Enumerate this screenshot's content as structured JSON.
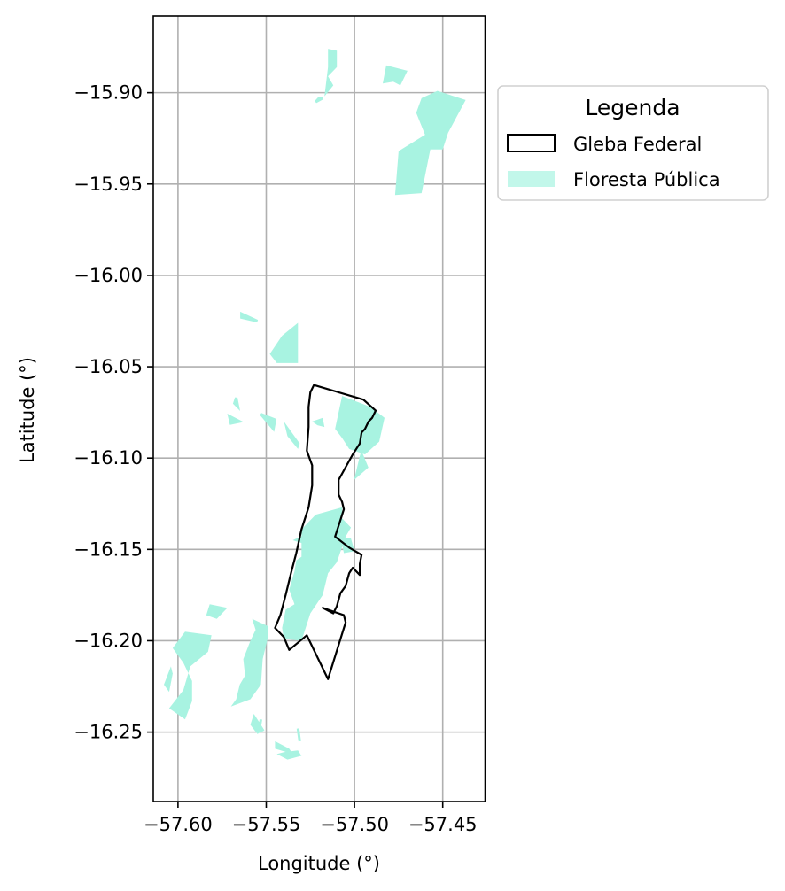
{
  "chart_data": {
    "type": "map",
    "xlabel": "Longitude (°)",
    "ylabel": "Latitude (°)",
    "xlim": [
      -57.614,
      -57.426
    ],
    "ylim": [
      -16.288,
      -15.858
    ],
    "xticks": [
      -57.6,
      -57.55,
      -57.5,
      -57.45
    ],
    "xtick_labels": [
      "−57.60",
      "−57.55",
      "−57.50",
      "−57.45"
    ],
    "yticks": [
      -15.9,
      -15.95,
      -16.0,
      -16.05,
      -16.1,
      -16.15,
      -16.2,
      -16.25
    ],
    "ytick_labels": [
      "−15.90",
      "−15.95",
      "−16.00",
      "−16.05",
      "−16.10",
      "−16.15",
      "−16.20",
      "−16.25"
    ],
    "grid": true,
    "legend": {
      "title": "Legenda",
      "placement": "outside-upper-right",
      "entries": [
        {
          "label": "Gleba Federal",
          "style": "outline"
        },
        {
          "label": "Floresta Pública",
          "style": "fill"
        }
      ]
    },
    "colors": {
      "floresta_publica": "#a8f3e1",
      "gleba_federal": "#000000",
      "grid": "#b0b0b0"
    },
    "layers": {
      "gleba_federal": [
        [
          [
            -57.523,
            -16.06
          ],
          [
            -57.495,
            -16.068
          ],
          [
            -57.488,
            -16.074
          ],
          [
            -57.49,
            -16.078
          ],
          [
            -57.492,
            -16.08
          ],
          [
            -57.494,
            -16.084
          ],
          [
            -57.496,
            -16.086
          ],
          [
            -57.497,
            -16.092
          ],
          [
            -57.501,
            -16.098
          ],
          [
            -57.505,
            -16.105
          ],
          [
            -57.509,
            -16.112
          ],
          [
            -57.509,
            -16.12
          ],
          [
            -57.507,
            -16.124
          ],
          [
            -57.506,
            -16.128
          ],
          [
            -57.508,
            -16.134
          ],
          [
            -57.511,
            -16.143
          ],
          [
            -57.503,
            -16.149
          ],
          [
            -57.496,
            -16.153
          ],
          [
            -57.497,
            -16.158
          ],
          [
            -57.497,
            -16.164
          ],
          [
            -57.499,
            -16.162
          ],
          [
            -57.501,
            -16.16
          ],
          [
            -57.503,
            -16.163
          ],
          [
            -57.505,
            -16.17
          ],
          [
            -57.508,
            -16.174
          ],
          [
            -57.51,
            -16.181
          ],
          [
            -57.512,
            -16.185
          ],
          [
            -57.518,
            -16.182
          ],
          [
            -57.506,
            -16.186
          ],
          [
            -57.505,
            -16.19
          ],
          [
            -57.515,
            -16.221
          ],
          [
            -57.527,
            -16.197
          ],
          [
            -57.537,
            -16.205
          ],
          [
            -57.54,
            -16.198
          ],
          [
            -57.545,
            -16.193
          ],
          [
            -57.542,
            -16.186
          ],
          [
            -57.539,
            -16.175
          ],
          [
            -57.536,
            -16.163
          ],
          [
            -57.533,
            -16.152
          ],
          [
            -57.53,
            -16.139
          ],
          [
            -57.526,
            -16.127
          ],
          [
            -57.524,
            -16.115
          ],
          [
            -57.524,
            -16.104
          ],
          [
            -57.527,
            -16.096
          ],
          [
            -57.526,
            -16.083
          ],
          [
            -57.526,
            -16.072
          ],
          [
            -57.525,
            -16.064
          ],
          [
            -57.523,
            -16.06
          ]
        ]
      ],
      "floresta_publica": [
        [
          [
            -57.515,
            -15.876
          ],
          [
            -57.51,
            -15.877
          ],
          [
            -57.51,
            -15.886
          ],
          [
            -57.515,
            -15.891
          ],
          [
            -57.512,
            -15.896
          ],
          [
            -57.517,
            -15.902
          ],
          [
            -57.515,
            -15.886
          ]
        ],
        [
          [
            -57.518,
            -15.903
          ],
          [
            -57.522,
            -15.905
          ],
          [
            -57.52,
            -15.903
          ]
        ],
        [
          [
            -57.482,
            -15.885
          ],
          [
            -57.47,
            -15.888
          ],
          [
            -57.474,
            -15.896
          ],
          [
            -57.478,
            -15.894
          ],
          [
            -57.484,
            -15.895
          ]
        ],
        [
          [
            -57.453,
            -15.899
          ],
          [
            -57.437,
            -15.904
          ],
          [
            -57.447,
            -15.922
          ],
          [
            -57.45,
            -15.931
          ],
          [
            -57.457,
            -15.931
          ],
          [
            -57.46,
            -15.923
          ],
          [
            -57.465,
            -15.911
          ],
          [
            -57.462,
            -15.903
          ]
        ],
        [
          [
            -57.465,
            -15.911
          ],
          [
            -57.46,
            -15.923
          ],
          [
            -57.475,
            -15.932
          ],
          [
            -57.477,
            -15.956
          ],
          [
            -57.462,
            -15.955
          ],
          [
            -57.457,
            -15.931
          ],
          [
            -57.45,
            -15.931
          ],
          [
            -57.453,
            -15.899
          ]
        ],
        [
          [
            -57.463,
            -15.945
          ],
          [
            -57.469,
            -15.944
          ],
          [
            -57.47,
            -15.938
          ],
          [
            -57.461,
            -15.939
          ]
        ],
        [
          [
            -57.564,
            -16.021
          ],
          [
            -57.555,
            -16.025
          ],
          [
            -57.564,
            -16.023
          ]
        ],
        [
          [
            -57.532,
            -16.026
          ],
          [
            -57.541,
            -16.033
          ],
          [
            -57.548,
            -16.043
          ],
          [
            -57.544,
            -16.048
          ],
          [
            -57.532,
            -16.048
          ]
        ],
        [
          [
            -57.567,
            -16.067
          ],
          [
            -57.566,
            -16.072
          ],
          [
            -57.568,
            -16.07
          ]
        ],
        [
          [
            -57.571,
            -16.077
          ],
          [
            -57.565,
            -16.08
          ],
          [
            -57.57,
            -16.081
          ]
        ],
        [
          [
            -57.553,
            -16.076
          ],
          [
            -57.546,
            -16.084
          ],
          [
            -57.545,
            -16.079
          ]
        ],
        [
          [
            -57.54,
            -16.08
          ],
          [
            -57.531,
            -16.092
          ],
          [
            -57.532,
            -16.095
          ],
          [
            -57.538,
            -16.088
          ]
        ],
        [
          [
            -57.524,
            -16.08
          ],
          [
            -57.518,
            -16.078
          ],
          [
            -57.517,
            -16.083
          ],
          [
            -57.521,
            -16.082
          ]
        ],
        [
          [
            -57.507,
            -16.066
          ],
          [
            -57.491,
            -16.072
          ],
          [
            -57.483,
            -16.078
          ],
          [
            -57.486,
            -16.091
          ],
          [
            -57.494,
            -16.098
          ],
          [
            -57.503,
            -16.095
          ],
          [
            -57.507,
            -16.089
          ],
          [
            -57.511,
            -16.084
          ]
        ],
        [
          [
            -57.496,
            -16.098
          ],
          [
            -57.493,
            -16.105
          ],
          [
            -57.499,
            -16.11
          ]
        ],
        [
          [
            -57.507,
            -16.127
          ],
          [
            -57.522,
            -16.131
          ],
          [
            -57.53,
            -16.139
          ],
          [
            -57.53,
            -16.154
          ],
          [
            -57.533,
            -16.156
          ],
          [
            -57.534,
            -16.162
          ],
          [
            -57.537,
            -16.172
          ],
          [
            -57.534,
            -16.18
          ],
          [
            -57.539,
            -16.183
          ],
          [
            -57.541,
            -16.193
          ],
          [
            -57.54,
            -16.199
          ],
          [
            -57.53,
            -16.2
          ],
          [
            -57.525,
            -16.185
          ],
          [
            -57.518,
            -16.175
          ],
          [
            -57.515,
            -16.163
          ],
          [
            -57.51,
            -16.157
          ],
          [
            -57.505,
            -16.143
          ],
          [
            -57.502,
            -16.138
          ],
          [
            -57.507,
            -16.133
          ]
        ],
        [
          [
            -57.535,
            -16.145
          ],
          [
            -57.526,
            -16.141
          ],
          [
            -57.52,
            -16.15
          ],
          [
            -57.515,
            -16.151
          ]
        ],
        [
          [
            -57.508,
            -16.143
          ],
          [
            -57.502,
            -16.144
          ],
          [
            -57.5,
            -16.151
          ],
          [
            -57.506,
            -16.152
          ]
        ],
        [
          [
            -57.582,
            -16.18
          ],
          [
            -57.572,
            -16.182
          ],
          [
            -57.578,
            -16.188
          ],
          [
            -57.584,
            -16.186
          ]
        ],
        [
          [
            -57.558,
            -16.188
          ],
          [
            -57.556,
            -16.194
          ],
          [
            -57.559,
            -16.2
          ],
          [
            -57.563,
            -16.21
          ],
          [
            -57.562,
            -16.219
          ],
          [
            -57.565,
            -16.224
          ],
          [
            -57.567,
            -16.232
          ],
          [
            -57.57,
            -16.236
          ],
          [
            -57.559,
            -16.232
          ],
          [
            -57.553,
            -16.224
          ],
          [
            -57.552,
            -16.21
          ],
          [
            -57.549,
            -16.198
          ],
          [
            -57.549,
            -16.192
          ]
        ],
        [
          [
            -57.596,
            -16.195
          ],
          [
            -57.581,
            -16.197
          ],
          [
            -57.583,
            -16.206
          ],
          [
            -57.593,
            -16.214
          ],
          [
            -57.597,
            -16.227
          ],
          [
            -57.605,
            -16.237
          ],
          [
            -57.599,
            -16.241
          ],
          [
            -57.596,
            -16.243
          ],
          [
            -57.592,
            -16.233
          ],
          [
            -57.592,
            -16.222
          ],
          [
            -57.597,
            -16.212
          ],
          [
            -57.603,
            -16.204
          ]
        ],
        [
          [
            -57.604,
            -16.214
          ],
          [
            -57.608,
            -16.224
          ],
          [
            -57.605,
            -16.228
          ],
          [
            -57.603,
            -16.218
          ]
        ],
        [
          [
            -57.557,
            -16.24
          ],
          [
            -57.551,
            -16.249
          ],
          [
            -57.555,
            -16.251
          ],
          [
            -57.559,
            -16.246
          ]
        ],
        [
          [
            -57.553,
            -16.243
          ],
          [
            -57.554,
            -16.249
          ]
        ],
        [
          [
            -57.545,
            -16.255
          ],
          [
            -57.537,
            -16.259
          ],
          [
            -57.535,
            -16.262
          ],
          [
            -57.545,
            -16.259
          ]
        ],
        [
          [
            -57.544,
            -16.262
          ],
          [
            -57.538,
            -16.265
          ],
          [
            -57.53,
            -16.263
          ],
          [
            -57.532,
            -16.26
          ],
          [
            -57.54,
            -16.261
          ]
        ],
        [
          [
            -57.532,
            -16.248
          ],
          [
            -57.531,
            -16.255
          ]
        ]
      ]
    }
  }
}
